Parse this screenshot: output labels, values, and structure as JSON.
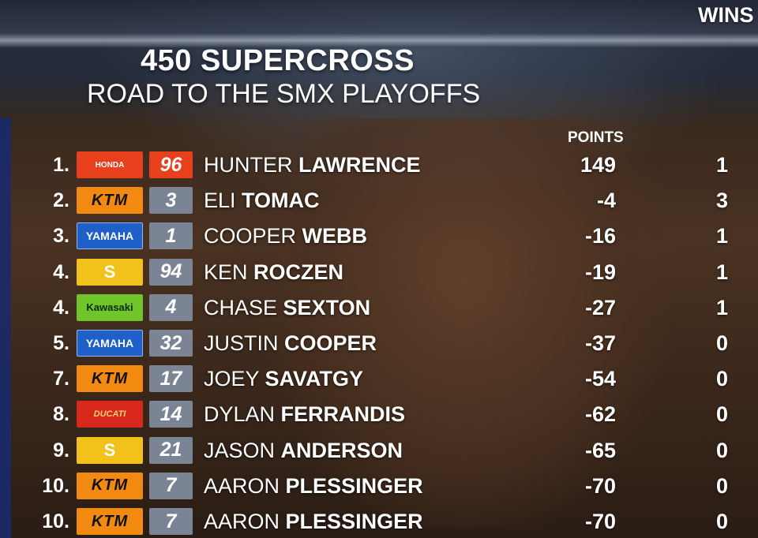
{
  "title": "450 SUPERCROSS",
  "subtitle": "ROAD TO THE SMX PLAYOFFS",
  "headers": {
    "points": "POINTS",
    "wins": "WINS"
  },
  "rows": [
    {
      "pos": "1.",
      "brand": "HONDA",
      "brand_class": "b-honda",
      "number": "96",
      "number_class": "b-honda-num",
      "first": "HUNTER",
      "last": "LAWRENCE",
      "points": "149",
      "wins": "1"
    },
    {
      "pos": "2.",
      "brand": "KTM",
      "brand_class": "b-ktm",
      "number": "3",
      "number_class": "",
      "first": "ELI",
      "last": "TOMAC",
      "points": "-4",
      "wins": "3"
    },
    {
      "pos": "3.",
      "brand": "YAMAHA",
      "brand_class": "b-yamaha",
      "number": "1",
      "number_class": "",
      "first": "COOPER",
      "last": "WEBB",
      "points": "-16",
      "wins": "1"
    },
    {
      "pos": "4.",
      "brand": "S",
      "brand_class": "b-suzuki",
      "number": "94",
      "number_class": "",
      "first": "KEN",
      "last": "ROCZEN",
      "points": "-19",
      "wins": "1"
    },
    {
      "pos": "4.",
      "brand": "Kawasaki",
      "brand_class": "b-kawasaki",
      "number": "4",
      "number_class": "",
      "first": "CHASE",
      "last": "SEXTON",
      "points": "-27",
      "wins": "1"
    },
    {
      "pos": "5.",
      "brand": "YAMAHA",
      "brand_class": "b-yamaha",
      "number": "32",
      "number_class": "",
      "first": "JUSTIN",
      "last": "COOPER",
      "points": "-37",
      "wins": "0"
    },
    {
      "pos": "7.",
      "brand": "KTM",
      "brand_class": "b-ktm",
      "number": "17",
      "number_class": "",
      "first": "JOEY",
      "last": "SAVATGY",
      "points": "-54",
      "wins": "0"
    },
    {
      "pos": "8.",
      "brand": "DUCATI",
      "brand_class": "b-ducati",
      "number": "14",
      "number_class": "",
      "first": "DYLAN",
      "last": "FERRANDIS",
      "points": "-62",
      "wins": "0"
    },
    {
      "pos": "9.",
      "brand": "S",
      "brand_class": "b-suzuki",
      "number": "21",
      "number_class": "",
      "first": "JASON",
      "last": "ANDERSON",
      "points": "-65",
      "wins": "0"
    },
    {
      "pos": "10.",
      "brand": "KTM",
      "brand_class": "b-ktm",
      "number": "7",
      "number_class": "",
      "first": "AARON",
      "last": "PLESSINGER",
      "points": "-70",
      "wins": "0"
    },
    {
      "pos": "10.",
      "brand": "KTM",
      "brand_class": "b-ktm",
      "number": "7",
      "number_class": "",
      "first": "AARON",
      "last": "PLESSINGER",
      "points": "-70",
      "wins": "0"
    }
  ]
}
